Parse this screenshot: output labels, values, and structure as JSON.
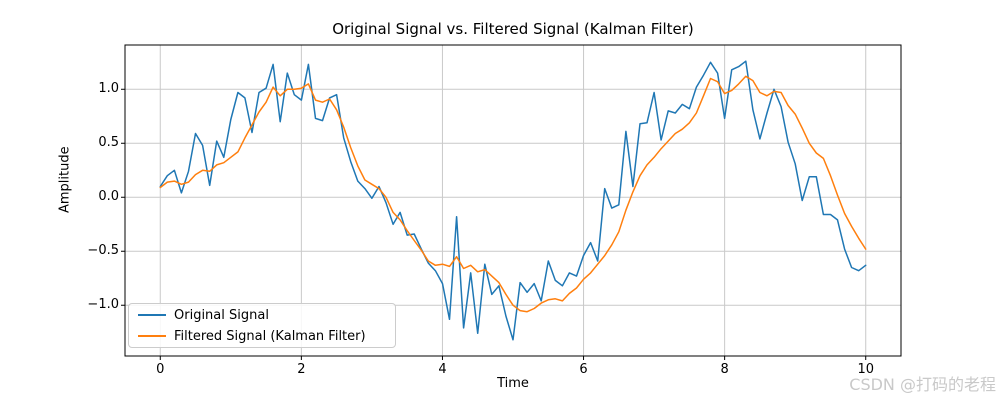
{
  "watermark": "CSDN @打码的老程",
  "chart_data": {
    "type": "line",
    "title": "Original Signal vs. Filtered Signal (Kalman Filter)",
    "xlabel": "Time",
    "ylabel": "Amplitude",
    "grid": true,
    "legend_position": "lower left",
    "xlim": [
      -0.5,
      10.5
    ],
    "ylim": [
      -1.47,
      1.41
    ],
    "x_ticks": [
      {
        "value": 0,
        "label": "0"
      },
      {
        "value": 2,
        "label": "2"
      },
      {
        "value": 4,
        "label": "4"
      },
      {
        "value": 6,
        "label": "6"
      },
      {
        "value": 8,
        "label": "8"
      },
      {
        "value": 10,
        "label": "10"
      }
    ],
    "y_ticks": [
      {
        "value": 1.0,
        "label": "1.0"
      },
      {
        "value": 0.5,
        "label": "0.5"
      },
      {
        "value": 0.0,
        "label": "0.0"
      },
      {
        "value": -0.5,
        "label": "−0.5"
      },
      {
        "value": -1.0,
        "label": "−1.0"
      }
    ],
    "x_start": 0,
    "x_step": 0.1,
    "series": [
      {
        "name": "Original Signal",
        "color": "#1f77b4",
        "values": [
          0.1,
          0.2,
          0.25,
          0.04,
          0.24,
          0.59,
          0.48,
          0.11,
          0.52,
          0.37,
          0.72,
          0.97,
          0.92,
          0.6,
          0.97,
          1.01,
          1.23,
          0.7,
          1.15,
          0.95,
          0.9,
          1.23,
          0.73,
          0.71,
          0.92,
          0.95,
          0.55,
          0.33,
          0.15,
          0.08,
          -0.01,
          0.1,
          -0.05,
          -0.25,
          -0.14,
          -0.35,
          -0.34,
          -0.48,
          -0.61,
          -0.68,
          -0.8,
          -1.13,
          -0.18,
          -1.21,
          -0.7,
          -1.26,
          -0.62,
          -0.9,
          -0.82,
          -1.1,
          -1.32,
          -0.79,
          -0.88,
          -0.8,
          -0.96,
          -0.59,
          -0.77,
          -0.82,
          -0.7,
          -0.73,
          -0.54,
          -0.42,
          -0.59,
          0.08,
          -0.1,
          -0.07,
          0.61,
          0.1,
          0.68,
          0.69,
          0.97,
          0.53,
          0.8,
          0.78,
          0.86,
          0.82,
          1.02,
          1.13,
          1.25,
          1.15,
          0.73,
          1.18,
          1.21,
          1.26,
          0.81,
          0.54,
          0.78,
          1.0,
          0.84,
          0.51,
          0.31,
          -0.03,
          0.19,
          0.19,
          -0.16,
          -0.16,
          -0.21,
          -0.48,
          -0.65,
          -0.68,
          -0.63
        ]
      },
      {
        "name": "Filtered Signal (Kalman Filter)",
        "color": "#ff7f0e",
        "values": [
          0.09,
          0.14,
          0.15,
          0.12,
          0.14,
          0.21,
          0.25,
          0.24,
          0.3,
          0.32,
          0.37,
          0.42,
          0.55,
          0.67,
          0.79,
          0.88,
          1.02,
          0.94,
          1.0,
          1.0,
          1.01,
          1.05,
          0.9,
          0.88,
          0.91,
          0.81,
          0.65,
          0.46,
          0.29,
          0.16,
          0.12,
          0.08,
          0.0,
          -0.14,
          -0.21,
          -0.31,
          -0.4,
          -0.49,
          -0.59,
          -0.63,
          -0.62,
          -0.64,
          -0.55,
          -0.66,
          -0.63,
          -0.69,
          -0.67,
          -0.73,
          -0.79,
          -0.9,
          -1.0,
          -1.05,
          -1.06,
          -1.03,
          -0.98,
          -0.95,
          -0.94,
          -0.96,
          -0.89,
          -0.84,
          -0.76,
          -0.7,
          -0.62,
          -0.54,
          -0.44,
          -0.32,
          -0.12,
          0.05,
          0.2,
          0.3,
          0.37,
          0.45,
          0.52,
          0.59,
          0.63,
          0.69,
          0.78,
          0.94,
          1.1,
          1.07,
          0.96,
          0.99,
          1.05,
          1.12,
          1.08,
          0.97,
          0.94,
          0.98,
          0.97,
          0.85,
          0.77,
          0.64,
          0.5,
          0.41,
          0.36,
          0.2,
          0.02,
          -0.15,
          -0.27,
          -0.38,
          -0.48
        ]
      }
    ],
    "styles": {
      "grid_color": "#c9c9c9",
      "spine_color": "#000000",
      "line_width": 1.5
    }
  }
}
